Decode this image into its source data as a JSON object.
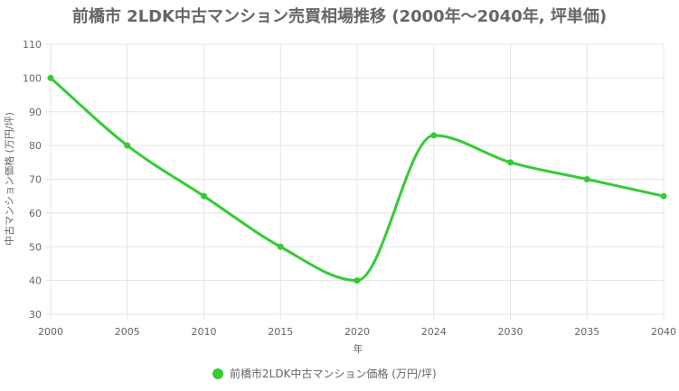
{
  "chart_data": {
    "type": "line",
    "title": "前橋市 2LDK中古マンション売買相場推移 (2000年〜2040年, 坪単価)",
    "xlabel": "年",
    "ylabel": "中古マンション価格 (万円/坪)",
    "x": [
      "2000",
      "2005",
      "2010",
      "2015",
      "2020",
      "2024",
      "2030",
      "2035",
      "2040"
    ],
    "series": [
      {
        "name": "前橋市2LDK中古マンション価格 (万円/坪)",
        "values": [
          100,
          80,
          65,
          50,
          40,
          83,
          75,
          70,
          65
        ],
        "color": "#33cc33"
      }
    ],
    "ylim": [
      30,
      110
    ],
    "yticks": [
      30,
      40,
      50,
      60,
      70,
      80,
      90,
      100,
      110
    ],
    "grid": true,
    "legend_position": "bottom"
  }
}
